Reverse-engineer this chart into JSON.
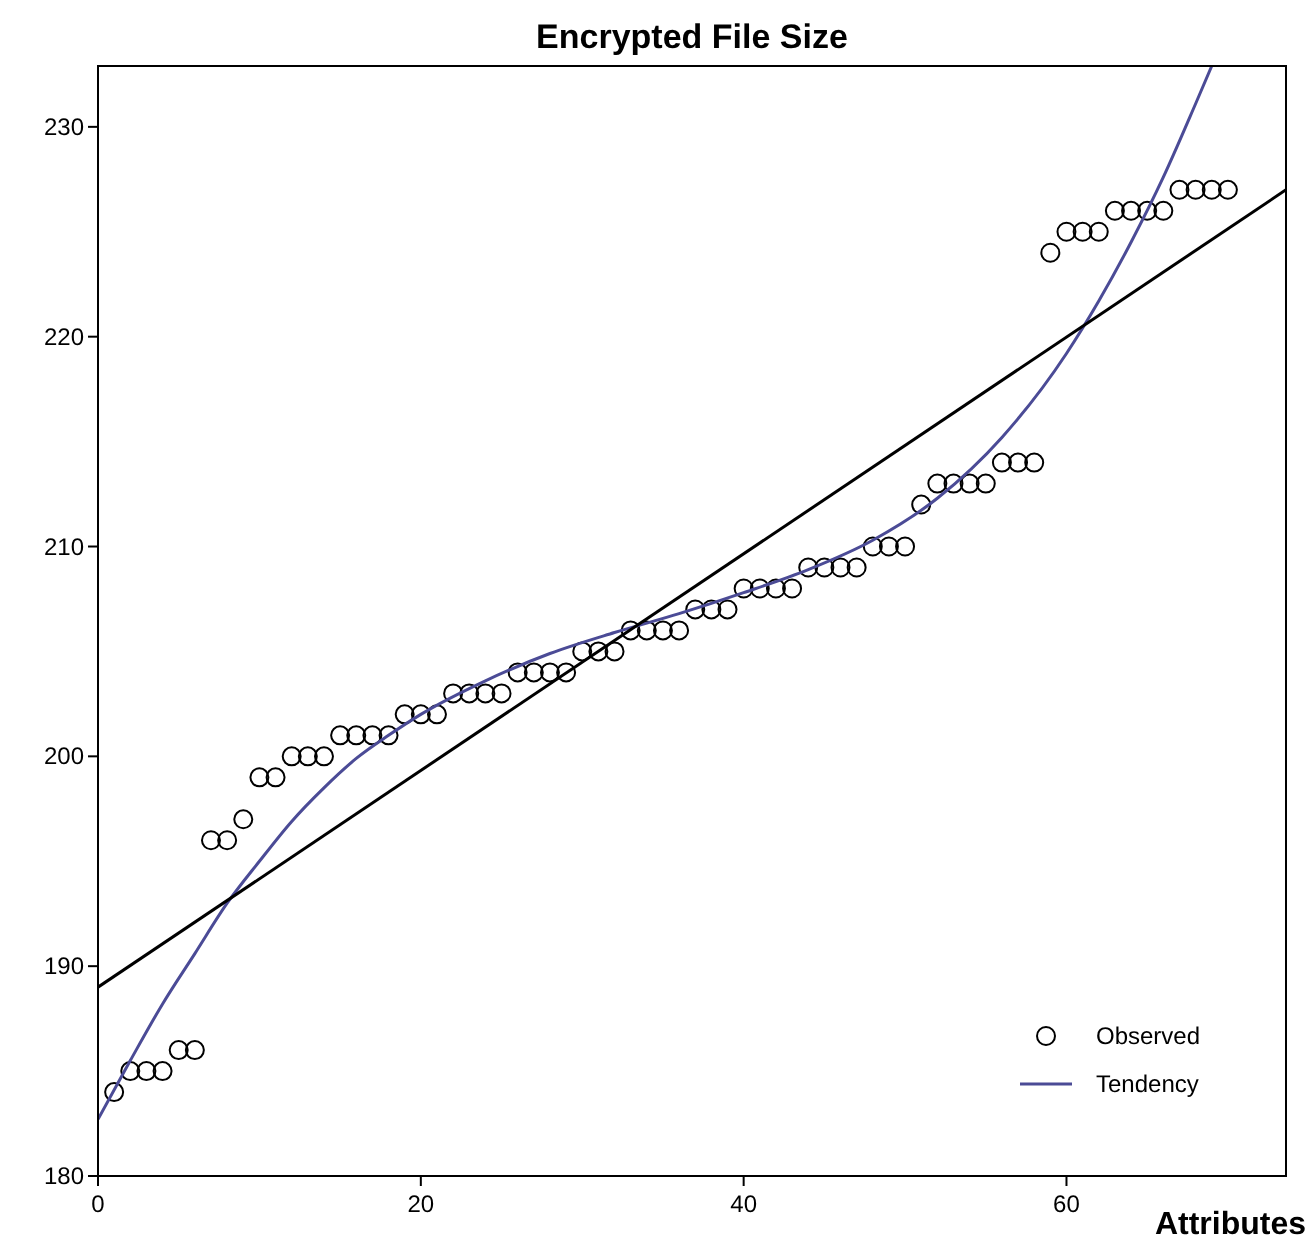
{
  "chart_data": {
    "type": "scatter",
    "title": "Encrypted File Size",
    "xlabel": "Attributes",
    "xlim": [
      0,
      73.6
    ],
    "ylim": [
      180,
      232.9
    ],
    "xticks": [
      0,
      20,
      40,
      60
    ],
    "yticks": [
      180,
      190,
      200,
      210,
      220,
      230
    ],
    "grid": false,
    "legend": "bottom right",
    "series": [
      {
        "name": "Observed",
        "marker": "circle",
        "color": "#000000",
        "x": [
          1,
          2,
          3,
          4,
          5,
          6,
          7,
          8,
          9,
          10,
          11,
          12,
          13,
          14,
          15,
          16,
          17,
          18,
          19,
          20,
          21,
          22,
          23,
          24,
          25,
          26,
          27,
          28,
          29,
          30,
          31,
          32,
          33,
          34,
          35,
          36,
          37,
          38,
          39,
          40,
          41,
          42,
          43,
          44,
          45,
          46,
          47,
          48,
          49,
          50,
          51,
          52,
          53,
          54,
          55,
          56,
          57,
          58,
          59,
          60,
          61,
          62,
          63,
          64,
          65,
          66,
          67,
          68,
          69,
          70
        ],
        "values": [
          184,
          185,
          185,
          185,
          186,
          186,
          196,
          196,
          197,
          199,
          199,
          200,
          200,
          200,
          201,
          201,
          201,
          201,
          202,
          202,
          202,
          203,
          203,
          203,
          203,
          204,
          204,
          204,
          204,
          205,
          205,
          205,
          206,
          206,
          206,
          206,
          207,
          207,
          207,
          208,
          208,
          208,
          208,
          209,
          209,
          209,
          209,
          210,
          210,
          210,
          212,
          213,
          213,
          213,
          213,
          214,
          214,
          214,
          224,
          225,
          225,
          225,
          226,
          226,
          226,
          226,
          227,
          227,
          227,
          227
        ]
      },
      {
        "name": "Tendency",
        "type": "line",
        "color": "#4b4b96",
        "x": [
          0,
          2,
          4,
          6,
          8,
          10,
          12,
          14,
          16,
          18,
          20,
          24,
          28,
          32,
          36,
          40,
          44,
          48,
          52,
          56,
          60,
          62,
          64,
          66,
          68,
          69
        ],
        "values": [
          182.7,
          185.5,
          188.2,
          190.6,
          193,
          195,
          196.9,
          198.5,
          199.9,
          201,
          202,
          203.6,
          204.9,
          205.9,
          206.8,
          207.8,
          208.9,
          210.3,
          212.3,
          215.2,
          219.2,
          221.7,
          224.5,
          227.6,
          231.1,
          232.9
        ]
      },
      {
        "type": "line",
        "color": "#000000",
        "x": [
          0,
          73.6
        ],
        "values": [
          189,
          227
        ]
      }
    ]
  }
}
